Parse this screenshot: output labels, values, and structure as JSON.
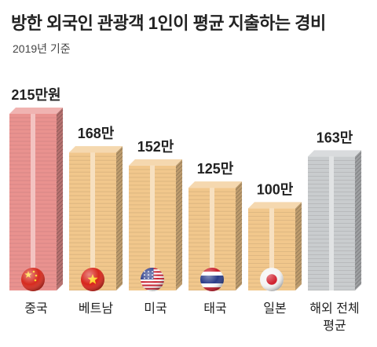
{
  "header": {
    "title": "방한 외국인 관광객 1인이 평균 지출하는 경비",
    "subtitle": "2019년 기준"
  },
  "colors": {
    "china": "#e9928f",
    "default": "#f1c78c",
    "overall": "#c9ccce",
    "highlight_label": "#d63a2c"
  },
  "chart_data": {
    "type": "bar",
    "title": "방한 외국인 관광객 1인이 평균 지출하는 경비",
    "subtitle": "2019년 기준",
    "unit": "만원",
    "ylim": [
      0,
      215
    ],
    "grid": false,
    "categories": [
      "중국",
      "베트남",
      "미국",
      "태국",
      "일본",
      "해외 전체 평균"
    ],
    "category_lines": [
      [
        "중국"
      ],
      [
        "베트남"
      ],
      [
        "미국"
      ],
      [
        "태국"
      ],
      [
        "일본"
      ],
      [
        "해외 전체",
        "평균"
      ]
    ],
    "values": [
      215,
      168,
      152,
      125,
      100,
      163
    ],
    "value_labels": [
      "215만원",
      "168만",
      "152만",
      "125만",
      "100만",
      "163만"
    ],
    "bar_colors": [
      "#e9928f",
      "#f1c78c",
      "#f1c78c",
      "#f1c78c",
      "#f1c78c",
      "#c9ccce"
    ],
    "label_colors": [
      "#d63a2c",
      "#222222",
      "#222222",
      "#222222",
      "#222222",
      "#222222"
    ],
    "flags": [
      "china-flag-icon",
      "vietnam-flag-icon",
      "usa-flag-icon",
      "thailand-flag-icon",
      "japan-flag-icon",
      ""
    ]
  }
}
